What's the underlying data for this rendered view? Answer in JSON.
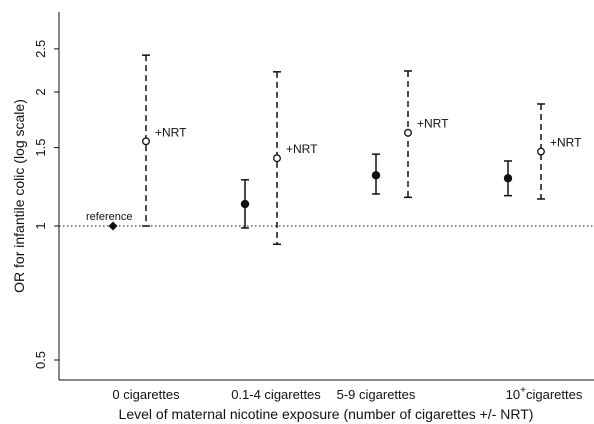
{
  "chart_data": {
    "type": "scatter",
    "title": "",
    "xlabel": "Level of maternal nicotine exposure (number of cigarettes +/- NRT)",
    "ylabel": "OR for infantile colic (log scale)",
    "y_scale": "log",
    "ylim": [
      0.45,
      3.0
    ],
    "yticks": [
      0.5,
      1,
      1.5,
      2,
      2.5
    ],
    "ytick_labels": [
      "0.5",
      "1",
      "1.5",
      "2",
      "2.5"
    ],
    "categories": [
      "0 cigarettes",
      "0.1-4 cigarettes",
      "5-9 cigarettes",
      "10 cigarettes"
    ],
    "category_superscript": [
      "",
      "",
      "",
      "+"
    ],
    "reference_line": 1,
    "grid": false,
    "series": [
      {
        "marker": "filled-circle",
        "line": "solid",
        "points": [
          {
            "category": "0.1-4 cigarettes",
            "or": 1.12,
            "lower": 0.99,
            "upper": 1.27
          },
          {
            "category": "5-9 cigarettes",
            "or": 1.3,
            "lower": 1.18,
            "upper": 1.45
          },
          {
            "category": "10 cigarettes",
            "or": 1.28,
            "lower": 1.17,
            "upper": 1.4
          }
        ]
      },
      {
        "marker": "hollow-circle",
        "line": "dashed",
        "points": [
          {
            "category": "0 cigarettes",
            "or": 1.55,
            "lower": 1.0,
            "upper": 2.42
          },
          {
            "category": "0.1-4 cigarettes",
            "or": 1.42,
            "lower": 0.91,
            "upper": 2.22
          },
          {
            "category": "5-9 cigarettes",
            "or": 1.62,
            "lower": 1.16,
            "upper": 2.23
          },
          {
            "category": "10 cigarettes",
            "or": 1.47,
            "lower": 1.15,
            "upper": 1.88
          }
        ]
      }
    ],
    "reference_point": {
      "category": "0 cigarettes",
      "or": 1.0,
      "marker": "diamond"
    },
    "annotations": {
      "reference": "reference",
      "nrt": "+NRT"
    }
  }
}
